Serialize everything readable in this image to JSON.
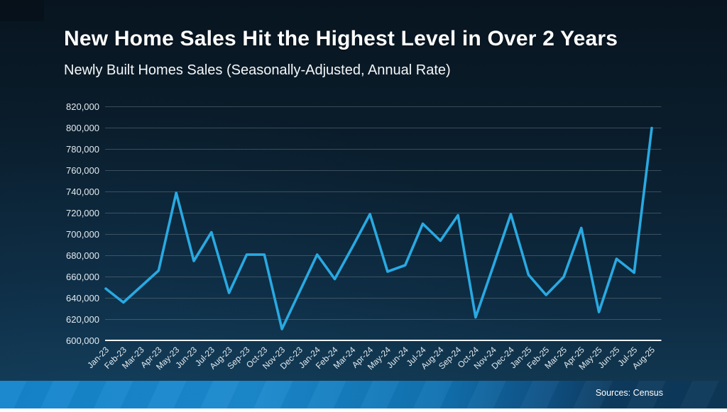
{
  "header": {
    "title": "New Home Sales Hit the Highest Level in Over 2 Years",
    "subtitle": "Newly Built Homes Sales (Seasonally-Adjusted, Annual Rate)"
  },
  "footer": {
    "source_label": "Sources: Census"
  },
  "colors": {
    "line": "#29a9e1",
    "axis": "#eef3f6",
    "gridline": "#6b7b86",
    "tick_label": "#e3eaee",
    "bar_gradient_left": "#1584cc",
    "bar_gradient_right": "#0d3757",
    "background_top": "#081520",
    "background_bottom": "#123a54"
  },
  "chart_data": {
    "type": "line",
    "title": "New Home Sales Hit the Highest Level in Over 2 Years",
    "subtitle": "Newly Built Homes Sales (Seasonally-Adjusted, Annual Rate)",
    "series_name": "New Home Sales (Seasonally-Adjusted Annual Rate)",
    "xlabel": "",
    "ylabel": "",
    "ylim": [
      600000,
      820000
    ],
    "ytick_step": 20000,
    "grid": true,
    "legend": false,
    "categories": [
      "Jan-23",
      "Feb-23",
      "Mar-23",
      "Apr-23",
      "May-23",
      "Jun-23",
      "Jul-23",
      "Aug-23",
      "Sep-23",
      "Oct-23",
      "Nov-23",
      "Dec-23",
      "Jan-24",
      "Feb-24",
      "Mar-24",
      "Apr-24",
      "May-24",
      "Jun-24",
      "Jul-24",
      "Aug-24",
      "Sep-24",
      "Oct-24",
      "Nov-24",
      "Dec-24",
      "Jan-25",
      "Feb-25",
      "Mar-25",
      "Apr-25",
      "May-25",
      "Jun-25",
      "Jul-25",
      "Aug-25"
    ],
    "values": [
      649000,
      636000,
      651000,
      666000,
      739000,
      675000,
      702000,
      645000,
      681000,
      681000,
      611000,
      646000,
      681000,
      658000,
      688000,
      719000,
      665000,
      671000,
      710000,
      694000,
      718000,
      622000,
      670000,
      719000,
      662000,
      643000,
      660000,
      706000,
      627000,
      677000,
      664000,
      800000
    ]
  }
}
